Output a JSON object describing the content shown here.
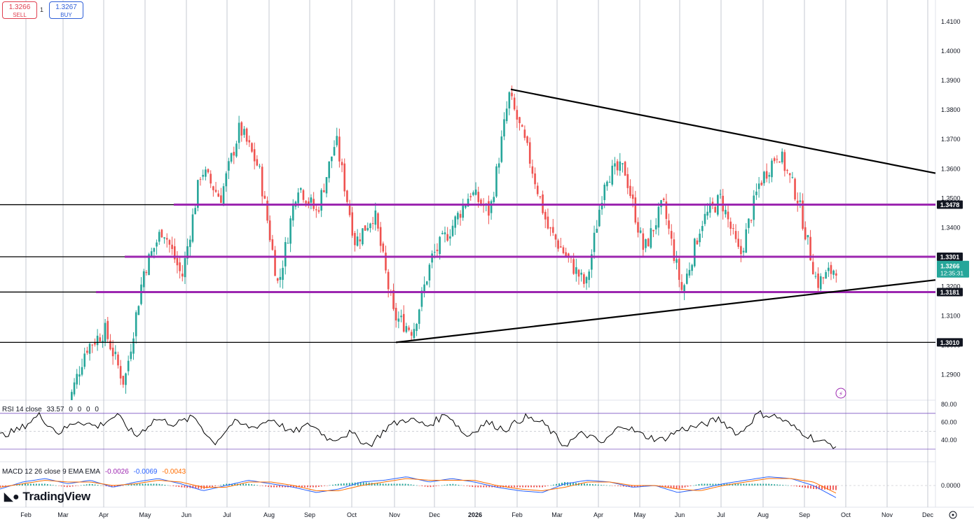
{
  "header": {
    "sell_price": "1.3266",
    "sell_label": "SELL",
    "spread": "1",
    "buy_price": "1.3267",
    "buy_label": "BUY"
  },
  "brand": "TradingView",
  "colors": {
    "up": "#26a69a",
    "down": "#ef5350",
    "level_line": "#9c27b0",
    "trend_line": "#000000",
    "rsi_line": "#000000",
    "macd_line": "#2962ff",
    "signal_line": "#ff6d00"
  },
  "chart_data": [
    {
      "type": "candlestick",
      "yaxis_ticks": [
        "1.4100",
        "1.4000",
        "1.3900",
        "1.3800",
        "1.3700",
        "1.3600",
        "1.3500",
        "1.3400",
        "1.3300",
        "1.3200",
        "1.3100",
        "1.3000",
        "1.2900"
      ],
      "ylim": [
        1.282,
        1.419
      ],
      "xaxis_ticks": [
        "Feb",
        "Mar",
        "Apr",
        "May",
        "Jun",
        "Jul",
        "Aug",
        "Sep",
        "Oct",
        "Nov",
        "Dec",
        "2026",
        "Feb",
        "Mar",
        "Apr",
        "May",
        "Jun",
        "Jul",
        "Aug",
        "Sep",
        "Oct",
        "Nov",
        "Dec"
      ],
      "last_price": "1.3266",
      "countdown": "12:35:31",
      "horizontal_levels": [
        {
          "label": "1.3478",
          "value": 1.3478
        },
        {
          "label": "1.3301",
          "value": 1.3301
        },
        {
          "label": "1.3181",
          "value": 1.3181
        },
        {
          "label": "1.3010",
          "value": 1.301
        }
      ],
      "trendlines": [
        {
          "from": [
            "2026-Feb",
            1.387
          ],
          "to": [
            "2026-Dec",
            1.3585
          ]
        },
        {
          "from": [
            "Nov",
            1.301
          ],
          "to": [
            "2026-Dec",
            1.3222
          ]
        }
      ],
      "close_path": [
        [
          "Feb",
          1.278
        ],
        [
          "Mar",
          1.299
        ],
        [
          "Mar",
          1.305
        ],
        [
          "Apr",
          1.287
        ],
        [
          "Apr",
          1.325
        ],
        [
          "May",
          1.34
        ],
        [
          "May",
          1.323
        ],
        [
          "Jun",
          1.36
        ],
        [
          "Jun",
          1.35
        ],
        [
          "Jul",
          1.374
        ],
        [
          "Jul",
          1.36
        ],
        [
          "Aug",
          1.32
        ],
        [
          "Aug",
          1.355
        ],
        [
          "Sep",
          1.345
        ],
        [
          "Sep",
          1.37
        ],
        [
          "Oct",
          1.335
        ],
        [
          "Oct",
          1.345
        ],
        [
          "Nov",
          1.31
        ],
        [
          "Nov",
          1.305
        ],
        [
          "Dec",
          1.33
        ],
        [
          "Dec",
          1.34
        ],
        [
          "2026",
          1.352
        ],
        [
          "2026",
          1.345
        ],
        [
          "Feb",
          1.385
        ],
        [
          "Feb",
          1.365
        ],
        [
          "Mar",
          1.34
        ],
        [
          "Mar",
          1.33
        ],
        [
          "Apr",
          1.32
        ],
        [
          "Apr",
          1.358
        ],
        [
          "May",
          1.36
        ],
        [
          "May",
          1.332
        ],
        [
          "Jun",
          1.348
        ],
        [
          "Jun",
          1.318
        ],
        [
          "Jul",
          1.342
        ],
        [
          "Jul",
          1.35
        ],
        [
          "Aug",
          1.33
        ],
        [
          "Aug",
          1.355
        ],
        [
          "Sep",
          1.366
        ],
        [
          "Sep",
          1.35
        ],
        [
          "Oct",
          1.321
        ],
        [
          "Oct",
          1.3266
        ]
      ]
    },
    {
      "type": "line",
      "title": "RSI 14 close",
      "legend_values": [
        "33.57",
        "0",
        "0",
        "0",
        "0"
      ],
      "yaxis_ticks": [
        "80.00",
        "60.00",
        "40.00"
      ],
      "bands": [
        70,
        30
      ],
      "last_value": 33.57,
      "path": [
        45,
        52,
        68,
        48,
        62,
        55,
        68,
        44,
        64,
        58,
        66,
        36,
        60,
        54,
        64,
        48,
        58,
        40,
        48,
        34,
        56,
        64,
        56,
        70,
        44,
        60,
        52,
        66,
        58,
        34,
        48,
        36,
        58,
        46,
        40,
        52,
        56,
        64,
        46,
        70,
        66,
        52,
        40,
        33.57
      ]
    },
    {
      "type": "bar",
      "title": "MACD 12 26 close 9 EMA EMA",
      "legend_values": [
        "-0.0026",
        "-0.0069",
        "-0.0043"
      ],
      "yaxis_ticks": [
        "0.0000"
      ],
      "macd_path": [
        -0.002,
        0.002,
        0.004,
        0.001,
        0.003,
        -0.001,
        0.002,
        0.004,
        0.001,
        -0.003,
        0.0,
        0.003,
        0.001,
        -0.001,
        -0.004,
        -0.002,
        0.002,
        0.003,
        0.005,
        0.002,
        0.004,
        0.002,
        -0.001,
        -0.003,
        -0.004,
        0.001,
        0.003,
        0.002,
        -0.001,
        0.0,
        -0.004,
        -0.002,
        0.001,
        0.003,
        0.005,
        0.004,
        0.0,
        -0.0069
      ],
      "signal_path": [
        -0.001,
        0.001,
        0.003,
        0.002,
        0.002,
        0.0,
        0.001,
        0.003,
        0.002,
        -0.001,
        -0.001,
        0.002,
        0.002,
        0.0,
        -0.003,
        -0.003,
        0.0,
        0.002,
        0.004,
        0.003,
        0.003,
        0.003,
        0.0,
        -0.002,
        -0.003,
        -0.001,
        0.002,
        0.002,
        0.0,
        0.0,
        -0.002,
        -0.003,
        0.0,
        0.002,
        0.004,
        0.004,
        0.002,
        -0.0043
      ]
    }
  ]
}
